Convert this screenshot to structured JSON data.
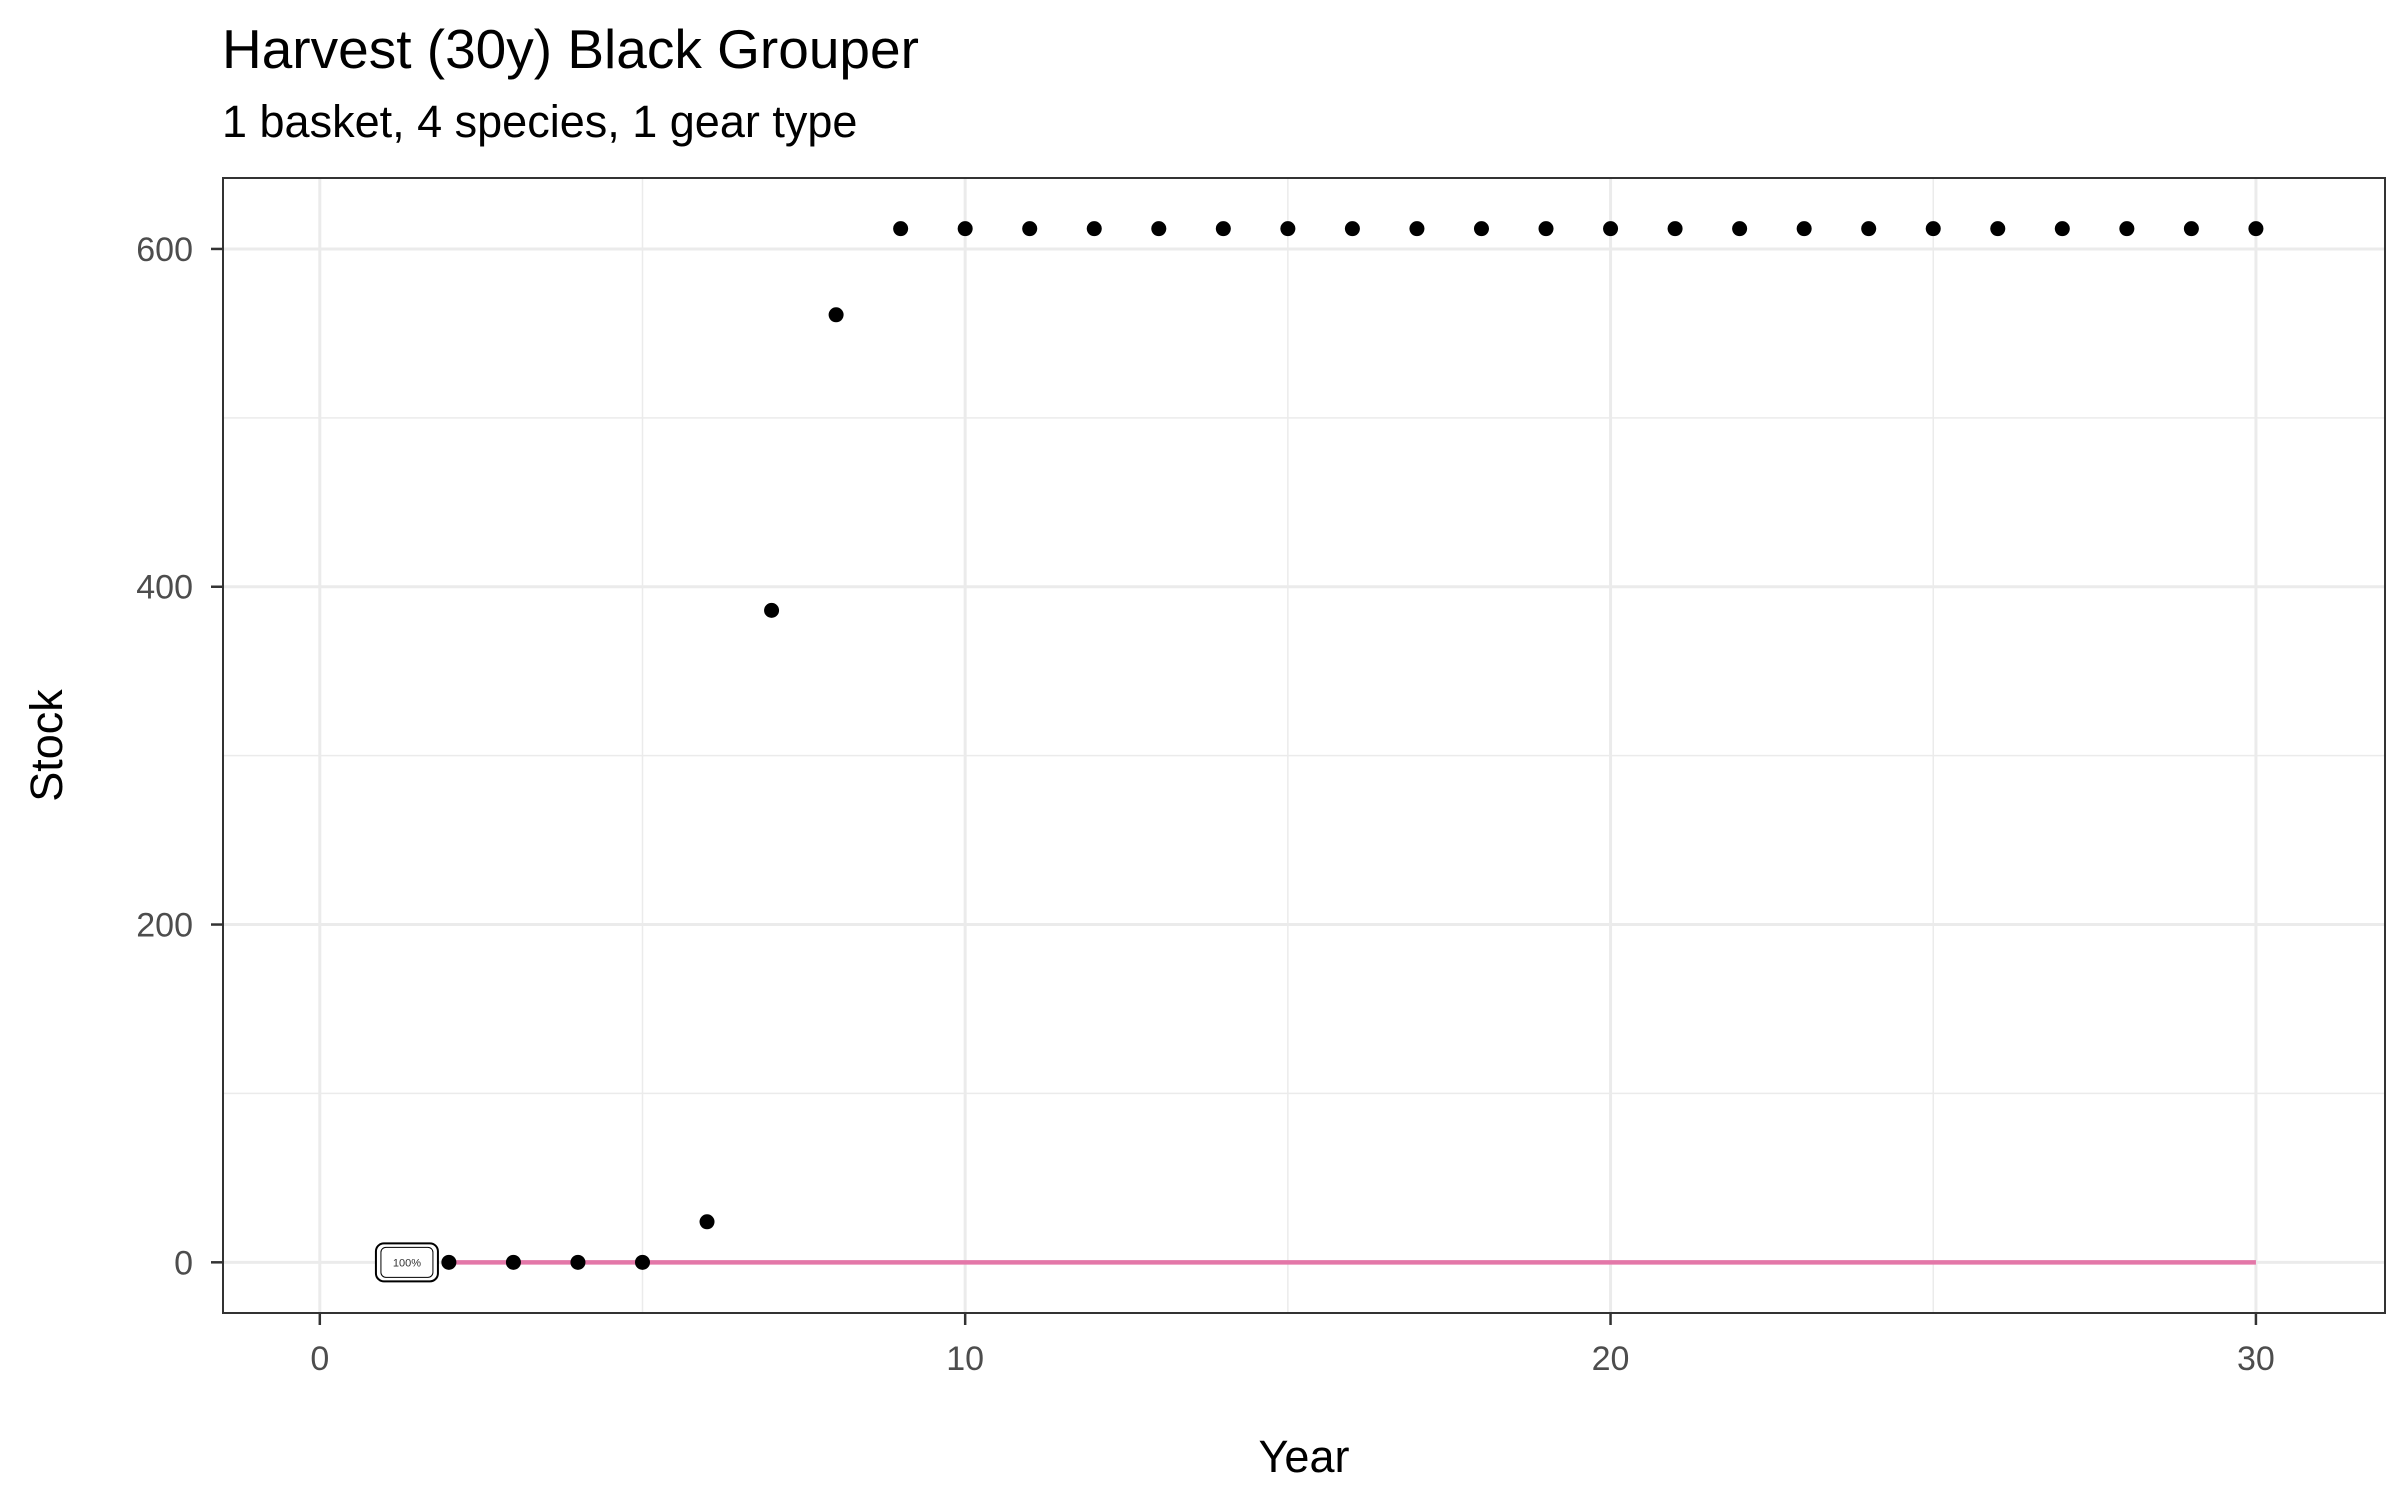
{
  "chart_data": {
    "type": "scatter",
    "title": "Harvest (30y) Black Grouper",
    "subtitle": "1 basket, 4 species, 1 gear type",
    "xlabel": "Year",
    "ylabel": "Stock",
    "xlim": [
      -1.5,
      32
    ],
    "ylim": [
      -30,
      642
    ],
    "x_ticks": [
      0,
      10,
      20,
      30
    ],
    "y_ticks": [
      0,
      200,
      400,
      600
    ],
    "grid": true,
    "points": {
      "x": [
        2,
        3,
        4,
        5,
        6,
        7,
        8,
        9,
        10,
        11,
        12,
        13,
        14,
        15,
        16,
        17,
        18,
        19,
        20,
        21,
        22,
        23,
        24,
        25,
        26,
        27,
        28,
        29,
        30
      ],
      "y": [
        0,
        0,
        0,
        0,
        24,
        386,
        561,
        612,
        612,
        612,
        612,
        612,
        612,
        612,
        612,
        612,
        612,
        612,
        612,
        612,
        612,
        612,
        612,
        612,
        612,
        612,
        612,
        612,
        612
      ],
      "color": "#000000"
    },
    "line": {
      "x": [
        2,
        30
      ],
      "y": [
        0,
        0
      ],
      "color": "#e377a8"
    },
    "annotation": {
      "text": "100%",
      "x": 1.35,
      "y": 0
    }
  }
}
